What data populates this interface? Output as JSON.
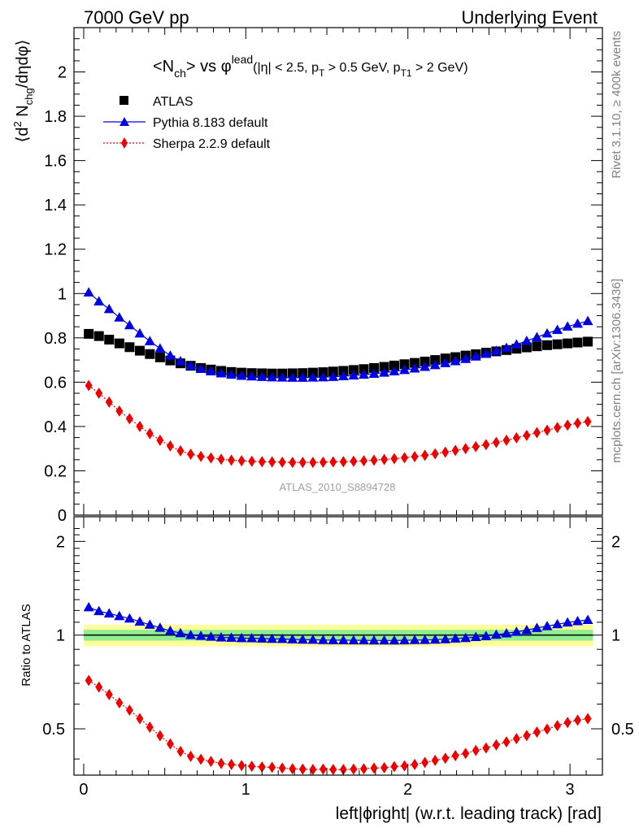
{
  "header": {
    "left": "7000 GeV pp",
    "right": "Underlying Event"
  },
  "side_labels": {
    "rivet": "Rivet 3.1.10, ≥ 400k events",
    "mcplots": "mcplots.cern.ch [arXiv:1306.3436]"
  },
  "watermark": "ATLAS_2010_S8894728",
  "title": {
    "main": "<N",
    "main_sub": "ch",
    "vs": "> vs φ",
    "vs_sup": "lead",
    "cuts_a": "(|η| < 2.5, p",
    "cuts_a_sub": "T",
    "cuts_b": " > 0.5 GeV, p",
    "cuts_b_sub": "T1",
    "cuts_c": " > 2 GeV)"
  },
  "ylabel_top": {
    "a": "⟨d",
    "a_sup": "2",
    "b": " N",
    "b_sub": "chg",
    "c": "/dηdφ⟩"
  },
  "ylabel_bottom": "Ratio to ATLAS",
  "xlabel": "left|ϕright| (w.r.t. leading track) [rad]",
  "legend": [
    {
      "label": "ATLAS",
      "color": "#000000",
      "marker": "square"
    },
    {
      "label": "Pythia 8.183 default",
      "color": "#0000e0",
      "marker": "triangle"
    },
    {
      "label": "Sherpa 2.2.9 default",
      "color": "#ee0000",
      "marker": "diamond"
    }
  ],
  "chart_data": {
    "type": "scatter",
    "x": [
      0.031,
      0.094,
      0.157,
      0.22,
      0.283,
      0.346,
      0.408,
      0.471,
      0.534,
      0.597,
      0.66,
      0.723,
      0.785,
      0.848,
      0.911,
      0.974,
      1.037,
      1.1,
      1.162,
      1.225,
      1.288,
      1.351,
      1.414,
      1.477,
      1.539,
      1.602,
      1.665,
      1.728,
      1.791,
      1.854,
      1.916,
      1.979,
      2.042,
      2.105,
      2.168,
      2.231,
      2.293,
      2.356,
      2.419,
      2.482,
      2.545,
      2.608,
      2.67,
      2.733,
      2.796,
      2.859,
      2.922,
      2.985,
      3.047,
      3.11
    ],
    "xlim": [
      -0.06,
      3.2
    ],
    "x_ticks": [
      "0",
      "1",
      "2",
      "3"
    ],
    "main": {
      "ylim": [
        0,
        2.2
      ],
      "y_ticks": [
        "0",
        "0.2",
        "0.4",
        "0.6",
        "0.8",
        "1",
        "1.2",
        "1.4",
        "1.6",
        "1.8",
        "2"
      ],
      "series": [
        {
          "name": "ATLAS",
          "color": "#000000",
          "marker": "square",
          "values": [
            0.818,
            0.808,
            0.792,
            0.775,
            0.758,
            0.742,
            0.727,
            0.712,
            0.698,
            0.685,
            0.674,
            0.664,
            0.657,
            0.651,
            0.646,
            0.643,
            0.641,
            0.64,
            0.639,
            0.639,
            0.64,
            0.641,
            0.643,
            0.645,
            0.648,
            0.651,
            0.655,
            0.659,
            0.664,
            0.669,
            0.675,
            0.681,
            0.687,
            0.693,
            0.7,
            0.707,
            0.713,
            0.72,
            0.726,
            0.733,
            0.739,
            0.745,
            0.751,
            0.757,
            0.762,
            0.767,
            0.771,
            0.775,
            0.779,
            0.783
          ]
        },
        {
          "name": "Pythia 8.183 default",
          "color": "#0000e0",
          "marker": "triangle",
          "values": [
            1.005,
            0.965,
            0.93,
            0.892,
            0.857,
            0.82,
            0.785,
            0.752,
            0.72,
            0.695,
            0.674,
            0.66,
            0.649,
            0.64,
            0.634,
            0.629,
            0.626,
            0.624,
            0.622,
            0.621,
            0.62,
            0.62,
            0.621,
            0.622,
            0.624,
            0.627,
            0.63,
            0.634,
            0.638,
            0.643,
            0.649,
            0.655,
            0.662,
            0.669,
            0.677,
            0.686,
            0.695,
            0.705,
            0.716,
            0.728,
            0.741,
            0.755,
            0.77,
            0.786,
            0.803,
            0.82,
            0.836,
            0.851,
            0.864,
            0.876
          ]
        },
        {
          "name": "Sherpa 2.2.9 default",
          "color": "#ee0000",
          "marker": "diamond",
          "values": [
            0.585,
            0.55,
            0.51,
            0.47,
            0.435,
            0.4,
            0.368,
            0.338,
            0.312,
            0.29,
            0.275,
            0.265,
            0.258,
            0.252,
            0.248,
            0.245,
            0.243,
            0.241,
            0.24,
            0.239,
            0.238,
            0.238,
            0.238,
            0.239,
            0.24,
            0.241,
            0.243,
            0.245,
            0.248,
            0.251,
            0.255,
            0.259,
            0.264,
            0.27,
            0.277,
            0.284,
            0.292,
            0.3,
            0.309,
            0.318,
            0.328,
            0.338,
            0.349,
            0.36,
            0.372,
            0.383,
            0.395,
            0.406,
            0.415,
            0.422
          ]
        }
      ]
    },
    "ratio": {
      "ylim": [
        0.355,
        2.4
      ],
      "y_ticks": [
        "0.5",
        "1",
        "2"
      ],
      "band_inner": [
        0.96,
        1.04
      ],
      "band_outer": [
        0.92,
        1.08
      ],
      "series": [
        {
          "name": "Pythia 8.183 default",
          "color": "#0000e0",
          "marker": "triangle",
          "values": [
            1.229,
            1.194,
            1.174,
            1.151,
            1.131,
            1.105,
            1.08,
            1.056,
            1.032,
            1.015,
            1.0,
            0.994,
            0.988,
            0.983,
            0.981,
            0.978,
            0.977,
            0.975,
            0.973,
            0.972,
            0.969,
            0.967,
            0.966,
            0.964,
            0.963,
            0.963,
            0.962,
            0.962,
            0.961,
            0.961,
            0.961,
            0.962,
            0.964,
            0.965,
            0.967,
            0.97,
            0.975,
            0.979,
            0.986,
            0.993,
            1.003,
            1.013,
            1.025,
            1.038,
            1.054,
            1.069,
            1.084,
            1.098,
            1.109,
            1.119
          ]
        },
        {
          "name": "Sherpa 2.2.9 default",
          "color": "#ee0000",
          "marker": "diamond",
          "values": [
            0.715,
            0.681,
            0.644,
            0.606,
            0.574,
            0.539,
            0.506,
            0.475,
            0.447,
            0.423,
            0.408,
            0.399,
            0.393,
            0.387,
            0.384,
            0.381,
            0.379,
            0.377,
            0.376,
            0.374,
            0.372,
            0.371,
            0.37,
            0.371,
            0.37,
            0.37,
            0.371,
            0.372,
            0.374,
            0.375,
            0.378,
            0.38,
            0.384,
            0.39,
            0.396,
            0.402,
            0.41,
            0.417,
            0.426,
            0.434,
            0.444,
            0.454,
            0.465,
            0.476,
            0.488,
            0.499,
            0.512,
            0.524,
            0.533,
            0.539
          ]
        }
      ]
    }
  }
}
